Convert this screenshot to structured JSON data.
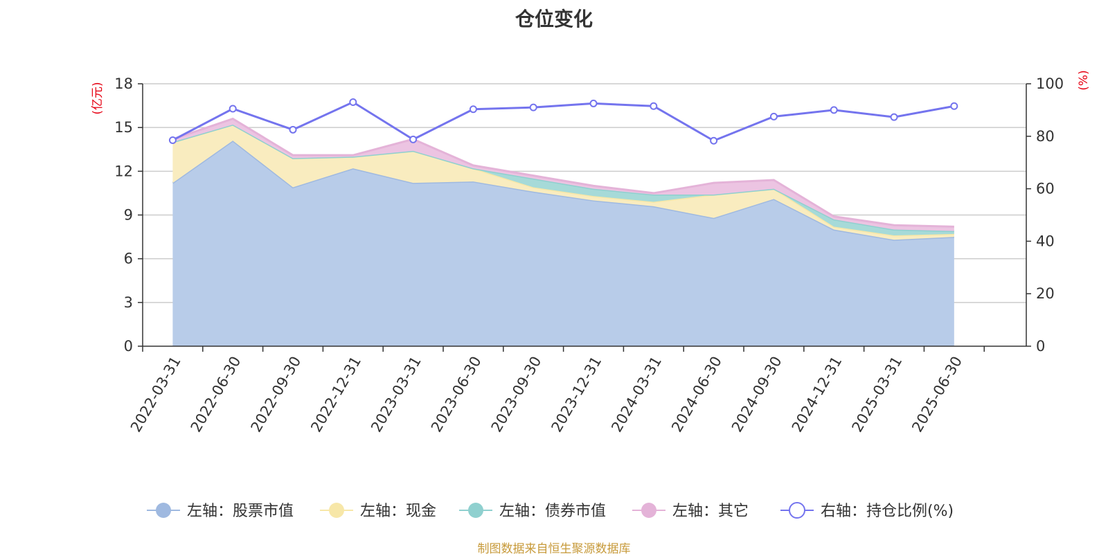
{
  "chart_data": {
    "type": "area",
    "title": "仓位变化",
    "source_note": "制图数据来自恒生聚源数据库",
    "left_axis_unit": "(亿元)",
    "right_axis_unit": "(%)",
    "left_ylim": [
      0,
      18
    ],
    "left_ticks": [
      0,
      3,
      6,
      9,
      12,
      15,
      18
    ],
    "right_ylim": [
      0,
      100
    ],
    "right_ticks": [
      0,
      20,
      40,
      60,
      80,
      100
    ],
    "grid": true,
    "legend_position": "bottom",
    "categories": [
      "2022-03-31",
      "2022-06-30",
      "2022-09-30",
      "2022-12-31",
      "2023-03-31",
      "2023-06-30",
      "2023-09-30",
      "2023-12-31",
      "2024-03-31",
      "2024-06-30",
      "2024-09-30",
      "2024-12-31",
      "2025-03-31",
      "2025-06-30"
    ],
    "series": [
      {
        "name": "左轴：股票市值",
        "axis": "left",
        "kind": "stacked-area",
        "color": "#9fb9e0",
        "fill": "#b8cce9",
        "values": [
          11.2,
          14.1,
          10.9,
          12.2,
          11.2,
          11.3,
          10.6,
          10.0,
          9.6,
          8.8,
          10.1,
          8.0,
          7.3,
          7.5
        ]
      },
      {
        "name": "左轴：现金",
        "axis": "left",
        "kind": "stacked-area",
        "color": "#f7e7a8",
        "fill": "#f9ecbf",
        "values": [
          2.8,
          1.1,
          2.0,
          0.8,
          2.2,
          0.9,
          0.3,
          0.3,
          0.3,
          1.6,
          0.7,
          0.2,
          0.3,
          0.2
        ]
      },
      {
        "name": "左轴：债券市值",
        "axis": "left",
        "kind": "stacked-area",
        "color": "#8fd0cf",
        "fill": "#a6dad8",
        "values": [
          0,
          0,
          0,
          0,
          0,
          0,
          0.6,
          0.5,
          0.5,
          0,
          0,
          0.5,
          0.4,
          0.2
        ]
      },
      {
        "name": "左轴：其它",
        "axis": "left",
        "kind": "stacked-area",
        "color": "#e4b3d8",
        "fill": "#ecc4e2",
        "values": [
          0.2,
          0.4,
          0.2,
          0.1,
          0.8,
          0.2,
          0.2,
          0.2,
          0.1,
          0.8,
          0.6,
          0.2,
          0.3,
          0.3
        ]
      },
      {
        "name": "右轴：持仓比例(%)",
        "axis": "right",
        "kind": "line",
        "color": "#7474ee",
        "values": [
          78.5,
          90.5,
          82.5,
          93.0,
          78.8,
          90.3,
          91.0,
          92.5,
          91.5,
          78.3,
          87.5,
          90.0,
          87.3,
          91.5
        ]
      }
    ]
  }
}
